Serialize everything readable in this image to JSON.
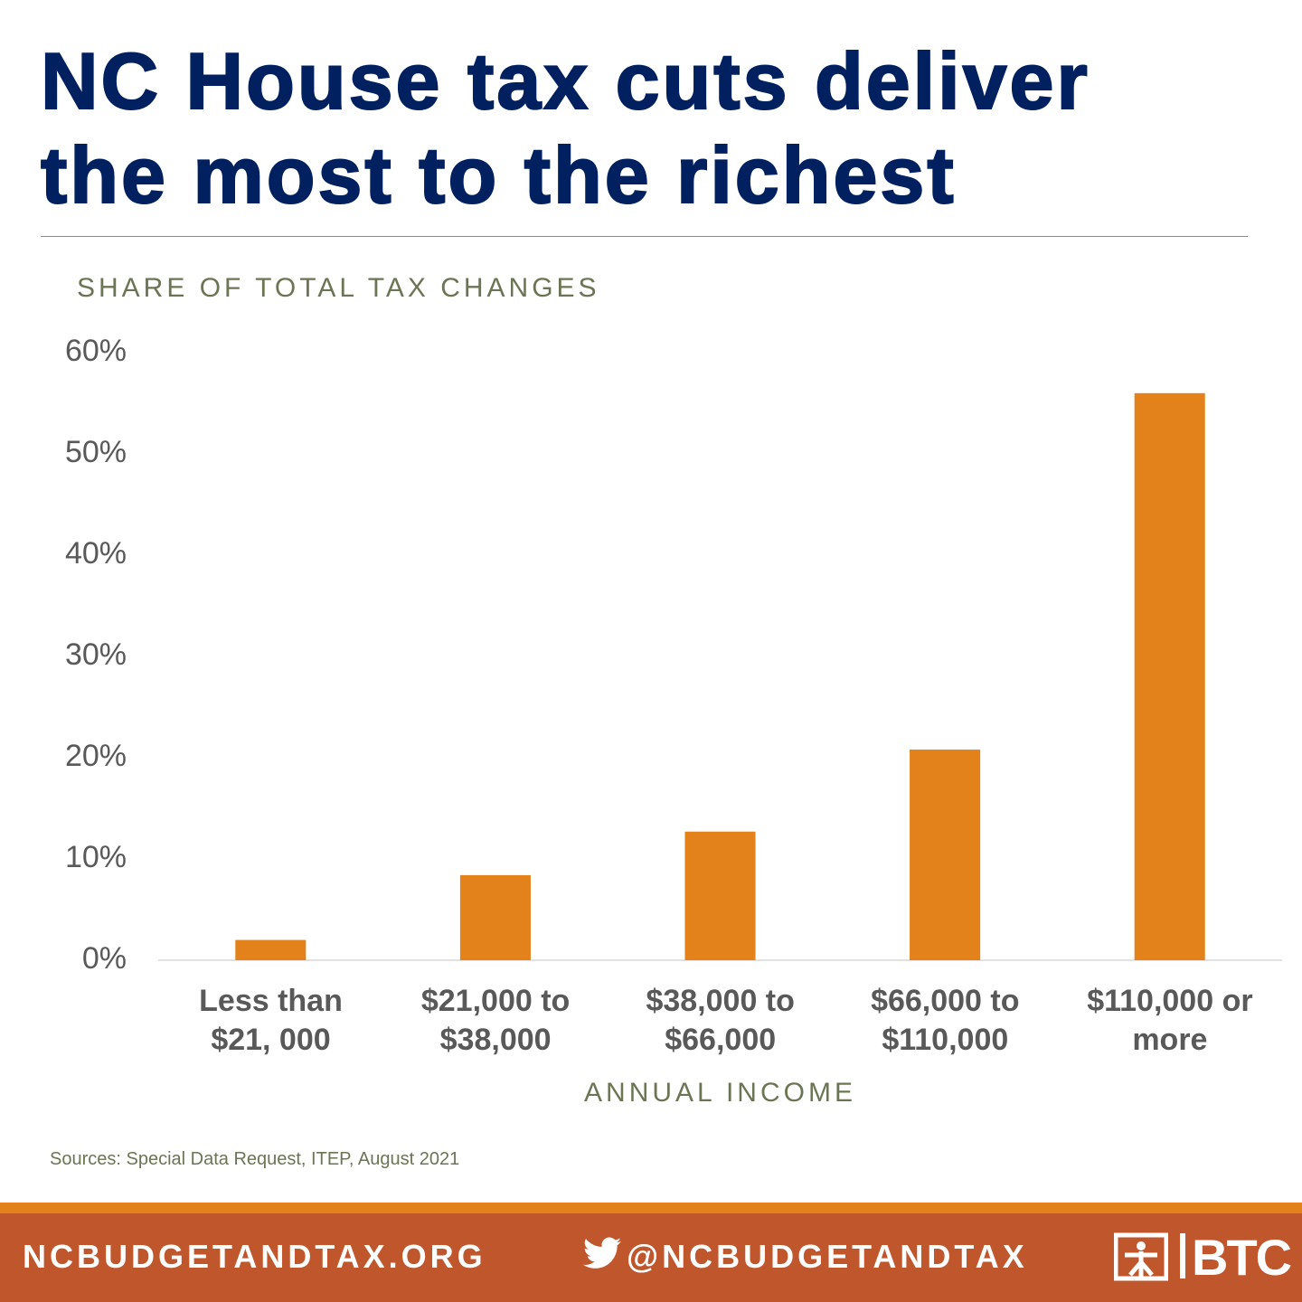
{
  "chart_data": {
    "type": "bar",
    "title": "NC House tax cuts deliver\nthe most to the richest",
    "y_label": "SHARE OF TOTAL TAX CHANGES",
    "x_label": "ANNUAL INCOME",
    "categories": [
      "Less than\n$21, 000",
      "$21,000 to\n$38,000",
      "$38,000 to\n$66,000",
      "$66,000 to\n$110,000",
      "$110,000 or\nmore"
    ],
    "values": [
      2,
      8.4,
      12.7,
      20.8,
      56
    ],
    "color": "#e3821a",
    "ylim": [
      0,
      60
    ],
    "yticks": [
      {
        "value": 0,
        "label": "0%"
      },
      {
        "value": 10,
        "label": "10%"
      },
      {
        "value": 20,
        "label": "20%"
      },
      {
        "value": 30,
        "label": "30%"
      },
      {
        "value": 40,
        "label": "40%"
      },
      {
        "value": 50,
        "label": "50%"
      },
      {
        "value": 60,
        "label": "60%"
      }
    ],
    "grid": false,
    "source": "Sources: Special Data Request, ITEP, August 2021"
  },
  "footer": {
    "website": "NCBUDGETANDTAX.ORG",
    "twitter": "@NCBUDGETANDTAX",
    "logo": "BTC"
  }
}
